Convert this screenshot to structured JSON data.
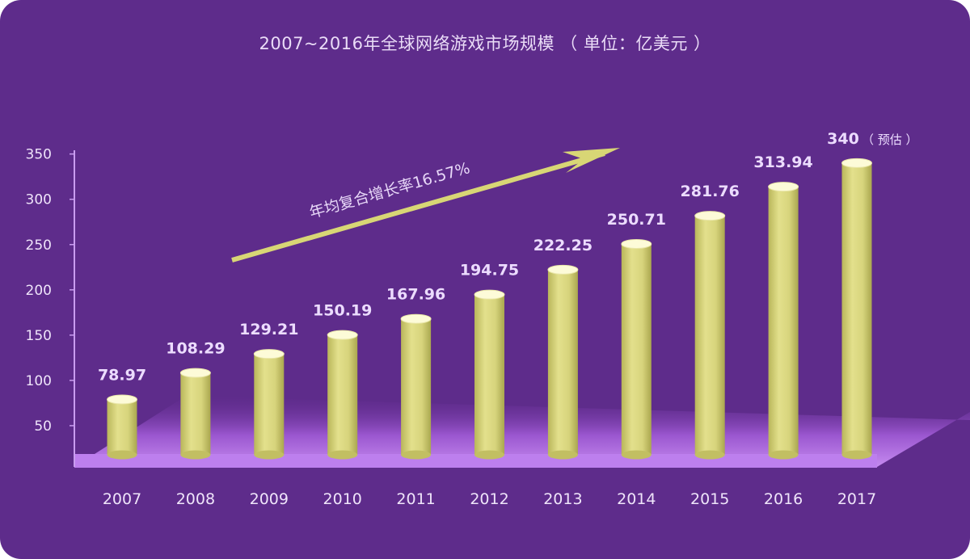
{
  "chart_data": {
    "type": "bar",
    "title": "2007~2016年全球网络游戏市场规模 （ 单位：亿美元 ）",
    "categories": [
      "2007",
      "2008",
      "2009",
      "2010",
      "2011",
      "2012",
      "2013",
      "2014",
      "2015",
      "2016",
      "2017"
    ],
    "values": [
      78.97,
      108.29,
      129.21,
      150.19,
      167.96,
      194.75,
      222.25,
      250.71,
      281.76,
      313.94,
      340
    ],
    "value_labels": [
      "78.97",
      "108.29",
      "129.21",
      "150.19",
      "167.96",
      "194.75",
      "222.25",
      "250.71",
      "281.76",
      "313.94",
      "340"
    ],
    "last_value_note": "（ 预估 ）",
    "yticks": [
      50,
      100,
      150,
      200,
      250,
      300,
      350
    ],
    "ylim": [
      0,
      350
    ],
    "annotation": "年均复合增长率16.57%",
    "colors": {
      "background": "#5e2c8b",
      "bar": "#d4d27a",
      "bar_top": "#fdfbd8",
      "floor": "#b877e6",
      "arrow": "#d8d675",
      "axis": "#c99cf0"
    }
  }
}
